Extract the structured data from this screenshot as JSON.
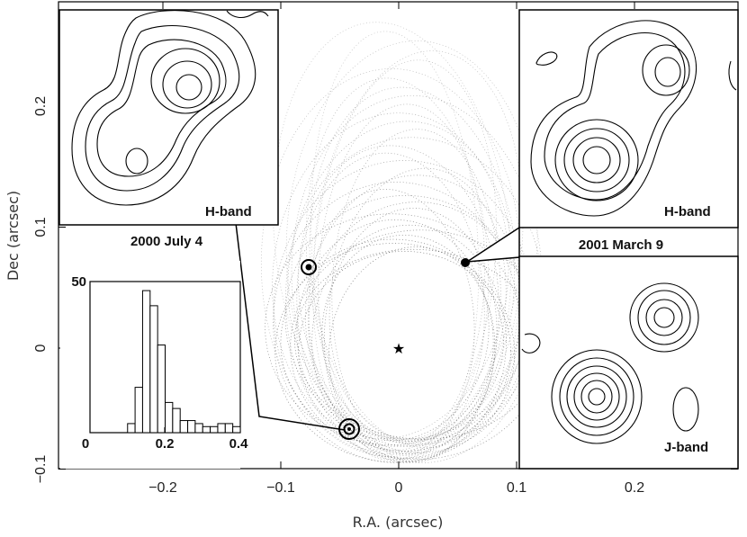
{
  "chart_data": {
    "type": "scatter",
    "title": "",
    "xlabel": "R.A. (arcsec)",
    "ylabel": "Dec (arcsec)",
    "xlim": [
      -0.28,
      0.28
    ],
    "ylim": [
      -0.1,
      0.28
    ],
    "x_ticks": [
      -0.2,
      -0.1,
      0,
      0.1,
      0.2
    ],
    "x_tick_labels": [
      "−0.2",
      "−0.1",
      "0",
      "0.1",
      "0.2"
    ],
    "y_ticks": [
      -0.1,
      0,
      0.1,
      0.2
    ],
    "y_tick_labels": [
      "−0.1",
      "0",
      "0.1",
      "0.2"
    ],
    "primary_star": {
      "x": 0,
      "y": 0,
      "marker": "star"
    },
    "observed_positions": [
      {
        "date": "2000 July 4",
        "x": -0.042,
        "y": -0.067,
        "marker": "circle-large"
      },
      {
        "date": "unlabeled epoch",
        "x": -0.075,
        "y": 0.064,
        "marker": "circle-medium"
      },
      {
        "date": "2001 March 9",
        "x": 0.057,
        "y": 0.068,
        "marker": "filled-dot"
      }
    ],
    "orbit_family": {
      "description_visible": "dotted candidate orbits",
      "center": {
        "x": 0.005,
        "y": 0.0
      },
      "semi_axis_x_range": [
        0.07,
        0.11
      ],
      "top_y_range": [
        0.08,
        0.27
      ],
      "bottom_y": -0.085
    },
    "insets": [
      {
        "label": "H-band",
        "date": "2000 July 4",
        "position": "upper-left"
      },
      {
        "label": "H-band",
        "date": "2001 March 9",
        "position": "upper-right"
      },
      {
        "label": "J-band",
        "date": "",
        "position": "lower-right"
      }
    ],
    "histogram": {
      "type": "bar",
      "position": "lower-left",
      "xlim": [
        0,
        0.4
      ],
      "ylim": [
        0,
        50
      ],
      "x_tick_labels": [
        "0",
        "0.2",
        "0.4"
      ],
      "y_tick_labels": [
        "50"
      ],
      "bin_width": 0.02,
      "bin_starts": [
        0.1,
        0.12,
        0.14,
        0.16,
        0.18,
        0.2,
        0.22,
        0.24,
        0.26,
        0.28,
        0.3,
        0.32,
        0.34,
        0.36,
        0.38
      ],
      "counts": [
        3,
        15,
        47,
        42,
        29,
        10,
        8,
        4,
        4,
        3,
        2,
        2,
        3,
        3,
        2
      ]
    }
  }
}
